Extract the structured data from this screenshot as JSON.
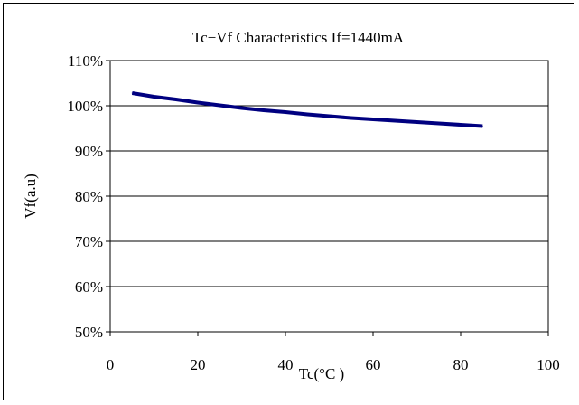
{
  "chart_data": {
    "type": "line",
    "title": "Tc−Vf  Characteristics     If=1440mA",
    "xlabel": "Tc(°C )",
    "ylabel": "Vf(a.u)",
    "xlim": [
      0,
      100
    ],
    "ylim": [
      50,
      110
    ],
    "x_ticks": [
      "0",
      "20",
      "40",
      "60",
      "80",
      "100"
    ],
    "y_ticks": [
      "110%",
      "100%",
      "90%",
      "80%",
      "70%",
      "60%",
      "50%"
    ],
    "grid": "horizontal",
    "legend": "none",
    "colors": {
      "series": "#000080",
      "grid": "#000000",
      "frame": "#000000"
    },
    "series": [
      {
        "x": [
          5,
          10,
          15,
          20,
          25,
          30,
          35,
          40,
          45,
          50,
          55,
          60,
          65,
          70,
          75,
          80,
          85
        ],
        "y": [
          102.8,
          102.0,
          101.4,
          100.7,
          100.1,
          99.5,
          99.0,
          98.6,
          98.1,
          97.7,
          97.3,
          97.0,
          96.7,
          96.4,
          96.1,
          95.8,
          95.5
        ]
      }
    ]
  }
}
